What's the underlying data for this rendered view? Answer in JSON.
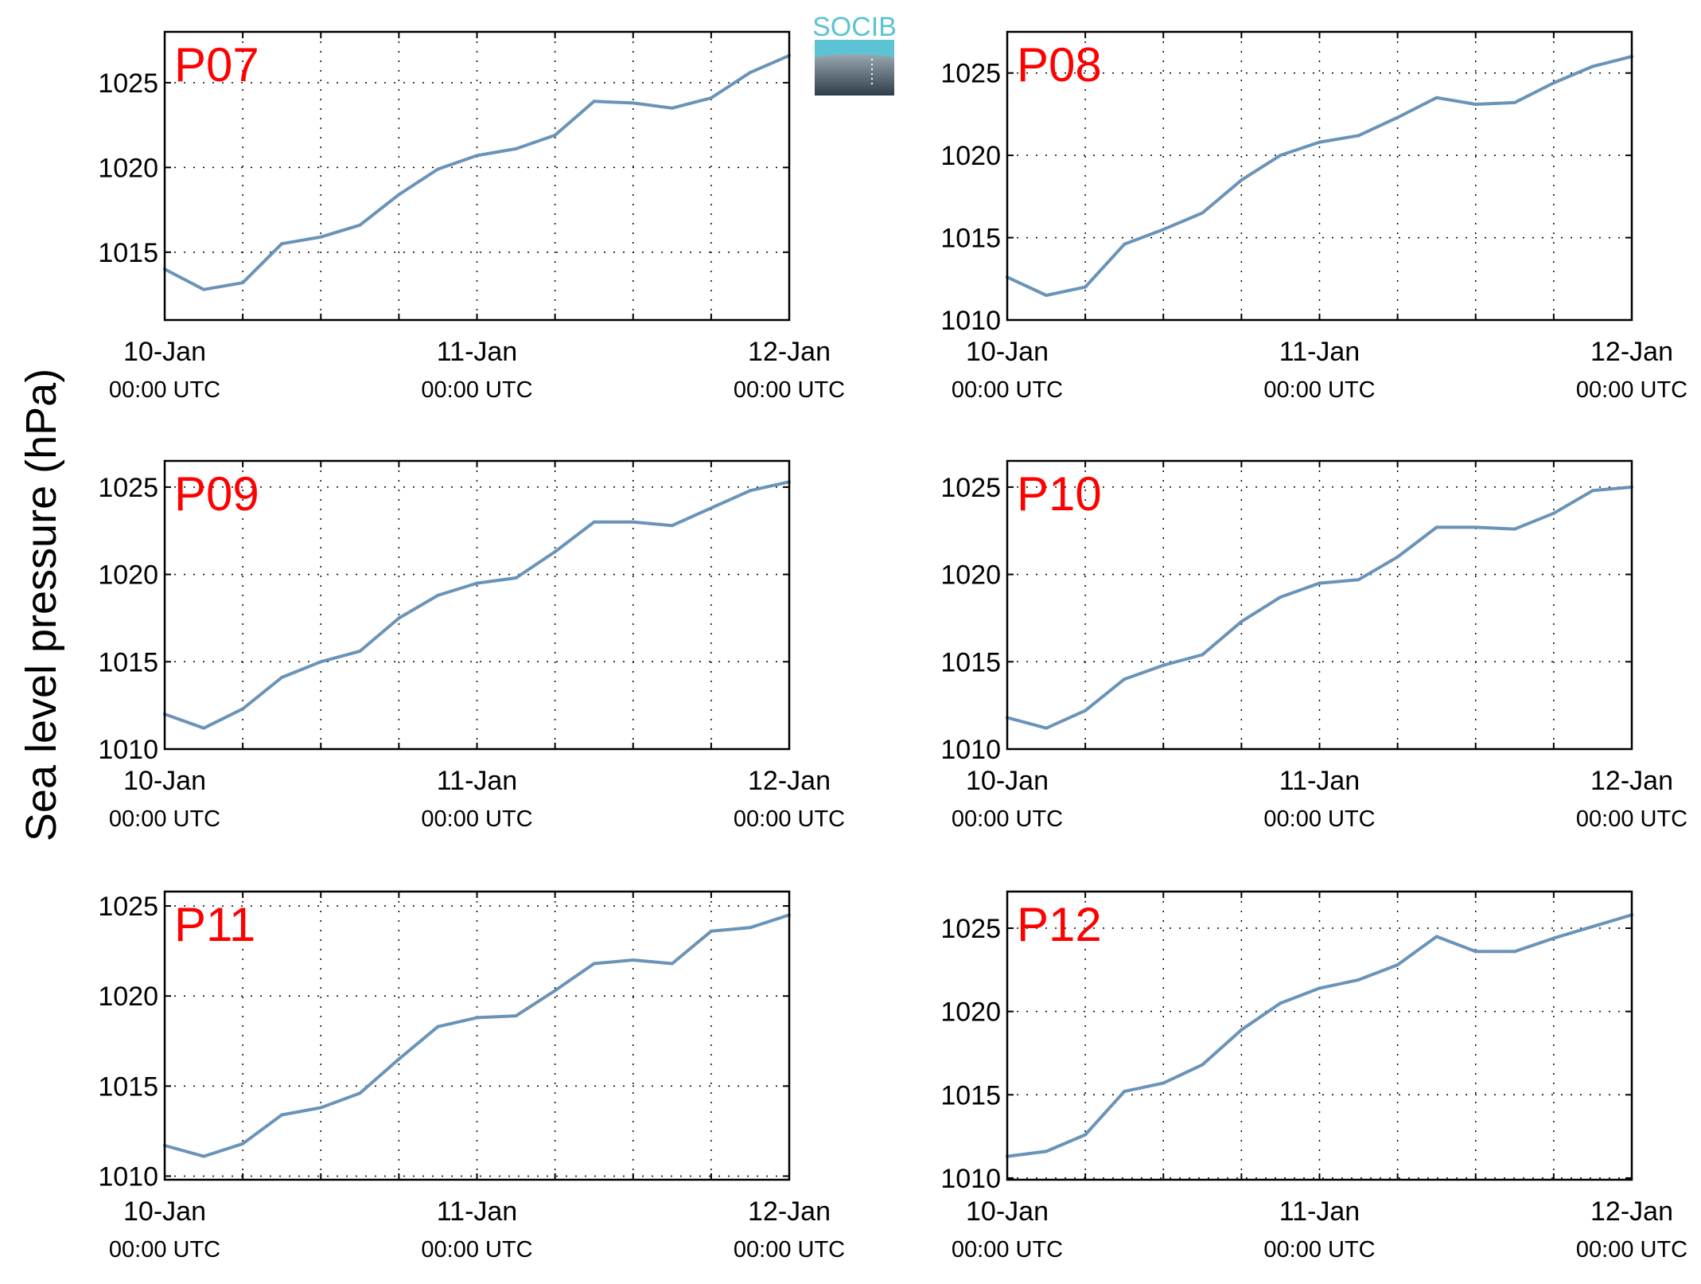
{
  "figure": {
    "ylabel": "Sea level pressure (hPa)",
    "logo_text": "SOCIB"
  },
  "colors": {
    "line": "#6a93b8",
    "panel_label": "#ff0000",
    "logo_top": "#5bc3d3",
    "logo_bottom": "#2e3d49"
  },
  "chart_data": [
    {
      "type": "line",
      "label": "P07",
      "xlim": [
        "10-Jan 00:00 UTC",
        "12-Jan 00:00 UTC"
      ],
      "xticks": [
        {
          "day": "10-Jan",
          "time": "00:00 UTC"
        },
        {
          "day": "11-Jan",
          "time": "00:00 UTC"
        },
        {
          "day": "12-Jan",
          "time": "00:00 UTC"
        }
      ],
      "ylim": [
        1011,
        1028
      ],
      "yticks": [
        1015,
        1020,
        1025
      ],
      "grid": true,
      "x_hours": [
        0,
        3,
        6,
        9,
        12,
        15,
        18,
        21,
        24,
        27,
        30,
        33,
        36,
        39,
        42,
        45,
        48
      ],
      "y": [
        1014.0,
        1012.8,
        1013.2,
        1015.5,
        1015.9,
        1016.6,
        1018.4,
        1019.9,
        1020.7,
        1021.1,
        1021.9,
        1023.9,
        1023.8,
        1023.5,
        1024.1,
        1025.6,
        1026.6
      ]
    },
    {
      "type": "line",
      "label": "P08",
      "xlim": [
        "10-Jan 00:00 UTC",
        "12-Jan 00:00 UTC"
      ],
      "xticks": [
        {
          "day": "10-Jan",
          "time": "00:00 UTC"
        },
        {
          "day": "11-Jan",
          "time": "00:00 UTC"
        },
        {
          "day": "12-Jan",
          "time": "00:00 UTC"
        }
      ],
      "ylim": [
        1010,
        1027.5
      ],
      "yticks": [
        1010,
        1015,
        1020,
        1025
      ],
      "grid": true,
      "x_hours": [
        0,
        3,
        6,
        9,
        12,
        15,
        18,
        21,
        24,
        27,
        30,
        33,
        36,
        39,
        42,
        45,
        48
      ],
      "y": [
        1012.6,
        1011.5,
        1012.0,
        1014.6,
        1015.5,
        1016.5,
        1018.5,
        1020.0,
        1020.8,
        1021.2,
        1022.3,
        1023.5,
        1023.1,
        1023.2,
        1024.4,
        1025.4,
        1026.0
      ]
    },
    {
      "type": "line",
      "label": "P09",
      "xlim": [
        "10-Jan 00:00 UTC",
        "12-Jan 00:00 UTC"
      ],
      "xticks": [
        {
          "day": "10-Jan",
          "time": "00:00 UTC"
        },
        {
          "day": "11-Jan",
          "time": "00:00 UTC"
        },
        {
          "day": "12-Jan",
          "time": "00:00 UTC"
        }
      ],
      "ylim": [
        1010,
        1026.5
      ],
      "yticks": [
        1010,
        1015,
        1020,
        1025
      ],
      "grid": true,
      "x_hours": [
        0,
        3,
        6,
        9,
        12,
        15,
        18,
        21,
        24,
        27,
        30,
        33,
        36,
        39,
        42,
        45,
        48
      ],
      "y": [
        1012.0,
        1011.2,
        1012.3,
        1014.1,
        1015.0,
        1015.6,
        1017.5,
        1018.8,
        1019.5,
        1019.8,
        1021.3,
        1023.0,
        1023.0,
        1022.8,
        1023.8,
        1024.8,
        1025.3
      ]
    },
    {
      "type": "line",
      "label": "P10",
      "xlim": [
        "10-Jan 00:00 UTC",
        "12-Jan 00:00 UTC"
      ],
      "xticks": [
        {
          "day": "10-Jan",
          "time": "00:00 UTC"
        },
        {
          "day": "11-Jan",
          "time": "00:00 UTC"
        },
        {
          "day": "12-Jan",
          "time": "00:00 UTC"
        }
      ],
      "ylim": [
        1010,
        1026.5
      ],
      "yticks": [
        1010,
        1015,
        1020,
        1025
      ],
      "grid": true,
      "x_hours": [
        0,
        3,
        6,
        9,
        12,
        15,
        18,
        21,
        24,
        27,
        30,
        33,
        36,
        39,
        42,
        45,
        48
      ],
      "y": [
        1011.8,
        1011.2,
        1012.2,
        1014.0,
        1014.8,
        1015.4,
        1017.3,
        1018.7,
        1019.5,
        1019.7,
        1021.0,
        1022.7,
        1022.7,
        1022.6,
        1023.5,
        1024.8,
        1025.0
      ]
    },
    {
      "type": "line",
      "label": "P11",
      "xlim": [
        "10-Jan 00:00 UTC",
        "12-Jan 00:00 UTC"
      ],
      "xticks": [
        {
          "day": "10-Jan",
          "time": "00:00 UTC"
        },
        {
          "day": "11-Jan",
          "time": "00:00 UTC"
        },
        {
          "day": "12-Jan",
          "time": "00:00 UTC"
        }
      ],
      "ylim": [
        1009.8,
        1025.8
      ],
      "yticks": [
        1010,
        1015,
        1020,
        1025
      ],
      "grid": true,
      "x_hours": [
        0,
        3,
        6,
        9,
        12,
        15,
        18,
        21,
        24,
        27,
        30,
        33,
        36,
        39,
        42,
        45,
        48
      ],
      "y": [
        1011.7,
        1011.1,
        1011.8,
        1013.4,
        1013.8,
        1014.6,
        1016.5,
        1018.3,
        1018.8,
        1018.9,
        1020.3,
        1021.8,
        1022.0,
        1021.8,
        1023.6,
        1023.8,
        1024.5
      ]
    },
    {
      "type": "line",
      "label": "P12",
      "xlim": [
        "10-Jan 00:00 UTC",
        "12-Jan 00:00 UTC"
      ],
      "xticks": [
        {
          "day": "10-Jan",
          "time": "00:00 UTC"
        },
        {
          "day": "11-Jan",
          "time": "00:00 UTC"
        },
        {
          "day": "12-Jan",
          "time": "00:00 UTC"
        }
      ],
      "ylim": [
        1009.9,
        1027.2
      ],
      "yticks": [
        1010,
        1015,
        1020,
        1025
      ],
      "grid": true,
      "x_hours": [
        0,
        3,
        6,
        9,
        12,
        15,
        18,
        21,
        24,
        27,
        30,
        33,
        36,
        39,
        42,
        45,
        48
      ],
      "y": [
        1011.3,
        1011.6,
        1012.6,
        1015.2,
        1015.7,
        1016.8,
        1018.9,
        1020.5,
        1021.4,
        1021.9,
        1022.8,
        1024.5,
        1023.6,
        1023.6,
        1024.4,
        1025.1,
        1025.8
      ]
    }
  ]
}
